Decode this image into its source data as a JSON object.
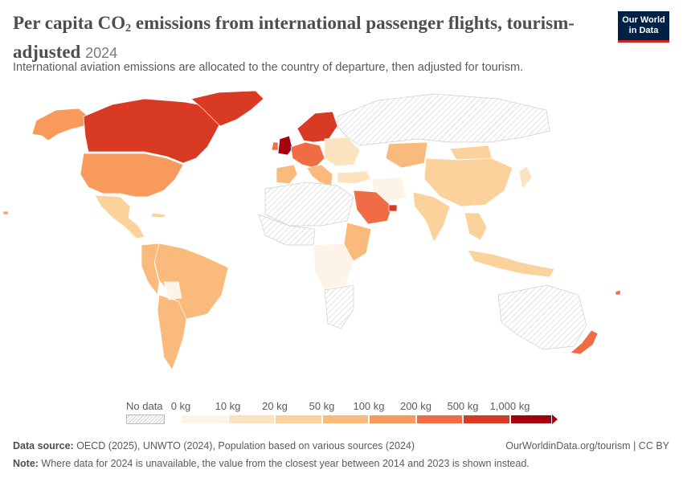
{
  "header": {
    "title_main": "Per capita CO",
    "title_sub": "2",
    "title_rest": " emissions from international passenger flights, tourism-adjusted",
    "year": "2024",
    "subtitle": "International aviation emissions are allocated to the country of departure, then adjusted for tourism."
  },
  "logo": {
    "line1": "Our World",
    "line2": "in Data",
    "bg": "#002147",
    "accent": "#ce261e"
  },
  "legend": {
    "no_data_label": "No data",
    "ticks": [
      "0 kg",
      "10 kg",
      "20 kg",
      "50 kg",
      "100 kg",
      "200 kg",
      "500 kg",
      "1,000 kg"
    ],
    "colors": [
      "#fdf3e7",
      "#fce3c0",
      "#fbd29b",
      "#f9ba7c",
      "#f79a5c",
      "#ef6c45",
      "#d93a24",
      "#a4000f"
    ]
  },
  "footer": {
    "source_label": "Data source:",
    "source_text": " OECD (2025), UNWTO (2024), Population based on various sources (2024)",
    "note_label": "Note:",
    "note_text": " Where data for 2024 is unavailable, the value from the closest year between 2014 and 2023 is shown instead.",
    "credit": "OurWorldinData.org/tourism | CC BY"
  },
  "map_colors": {
    "no_data_fill": "#f2f2f2",
    "border": "#ffffff",
    "canada": "#d93a24",
    "usa": "#f79a5c",
    "greenland": "#d93a24",
    "alaska": "#f79a5c",
    "uk": "#a4000f",
    "europe_north": "#d93a24",
    "europe_west": "#ef6c45",
    "europe_south": "#f9ba7c",
    "europe_east": "#fce3c0",
    "russia": "#f2f2f2",
    "china": "#fbd29b",
    "india": "#fbd29b",
    "saudi": "#ef6c45",
    "south_america": "#f9ba7c",
    "central_america": "#fbd29b",
    "africa_light": "#fdf3e7",
    "australia": "#f2f2f2",
    "new_zealand": "#ef6c45",
    "kazakhstan": "#f9ba7c",
    "mongolia": "#fbd29b",
    "se_asia": "#fbd29b"
  }
}
